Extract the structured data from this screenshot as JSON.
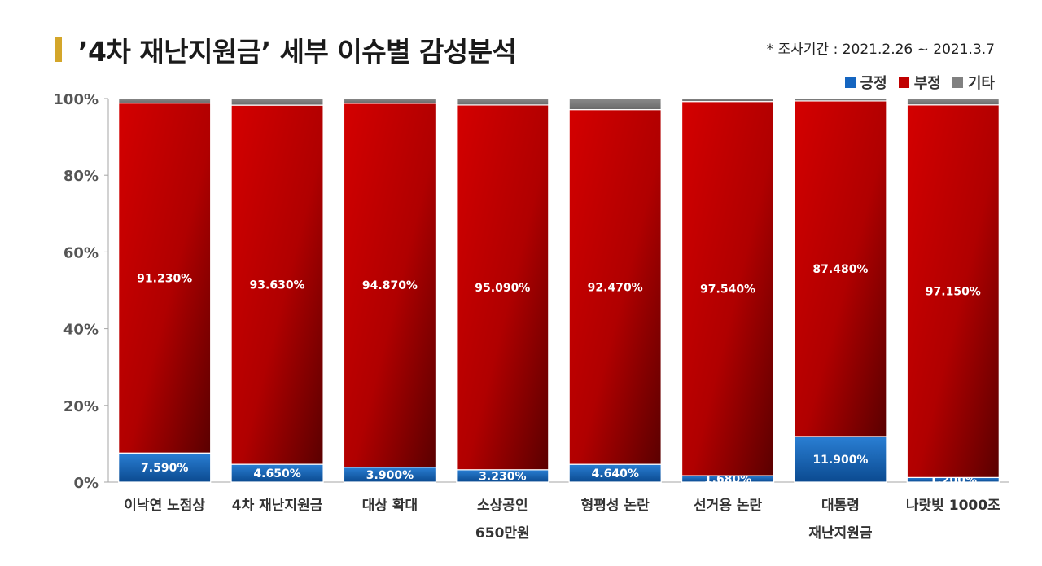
{
  "header": {
    "title": "’4차 재난지원금’ 세부 이슈별 감성분석",
    "period_note": "* 조사기간 : 2021.2.26 ~ 2021.3.7"
  },
  "colors": {
    "accent": "#d4a62a",
    "positive": "#1565c0",
    "negative": "#c00000",
    "other": "#808080"
  },
  "chart_data": {
    "type": "bar",
    "stacked": true,
    "percent": true,
    "categories": [
      [
        "이낙연 노점상"
      ],
      [
        "4차 재난지원금"
      ],
      [
        "대상 확대"
      ],
      [
        "소상공인",
        "650만원"
      ],
      [
        "형평성 논란"
      ],
      [
        "선거용 논란"
      ],
      [
        "대통령",
        "재난지원금"
      ],
      [
        "나랏빚 1000조"
      ]
    ],
    "series": [
      {
        "name": "긍정",
        "values": [
          7.59,
          4.65,
          3.9,
          3.23,
          4.64,
          1.68,
          11.9,
          1.2
        ],
        "labels": [
          "7.590%",
          "4.650%",
          "3.900%",
          "3.230%",
          "4.640%",
          "1.680%",
          "11.900%",
          "1.200%"
        ]
      },
      {
        "name": "부정",
        "values": [
          91.23,
          93.63,
          94.87,
          95.09,
          92.47,
          97.54,
          87.48,
          97.15
        ],
        "labels": [
          "91.230%",
          "93.630%",
          "94.870%",
          "95.090%",
          "92.470%",
          "97.540%",
          "87.480%",
          "97.150%"
        ]
      },
      {
        "name": "기타",
        "values": [
          1.18,
          1.72,
          1.23,
          1.68,
          2.89,
          0.78,
          0.62,
          1.65
        ]
      }
    ],
    "ylim": [
      0,
      100
    ],
    "yticks": [
      "0%",
      "20%",
      "40%",
      "60%",
      "80%",
      "100%"
    ],
    "grid": false,
    "legend": "top-right"
  }
}
